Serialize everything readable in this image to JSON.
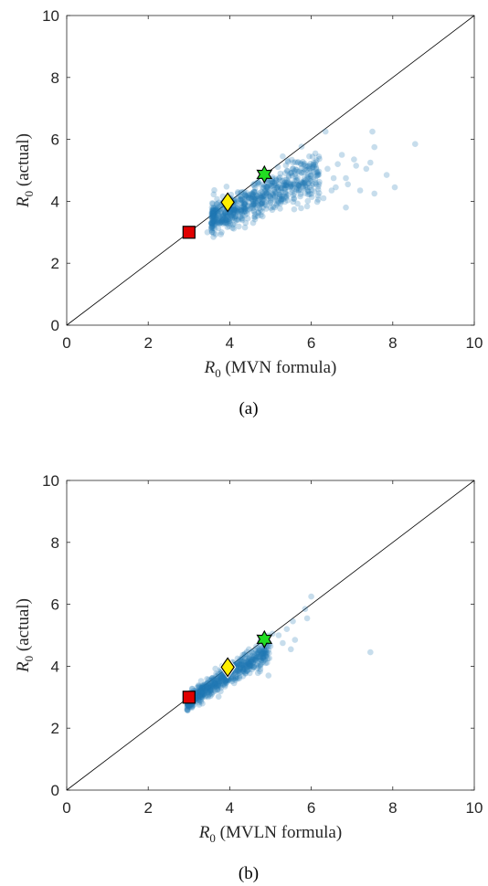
{
  "chart_data": [
    {
      "type": "scatter",
      "caption": "(a)",
      "xlabel": {
        "symbol": "R",
        "sub": "0",
        "rest": " (MVN formula)"
      },
      "ylabel": {
        "symbol": "R",
        "sub": "0",
        "rest": " (actual)"
      },
      "xlim": [
        0,
        10
      ],
      "ylim": [
        0,
        10
      ],
      "xticks": [
        0,
        2,
        4,
        6,
        8,
        10
      ],
      "yticks": [
        0,
        2,
        4,
        6,
        8,
        10
      ],
      "grid": false,
      "reference_line": {
        "x": [
          0,
          10
        ],
        "y": [
          0,
          10
        ]
      },
      "cloud": {
        "color": "#1f77b4",
        "opacity": 0.25,
        "x_range": [
          3.55,
          6.2
        ],
        "slope": 0.55,
        "spread": 0.3,
        "count": 700,
        "seed": 11
      },
      "extra_points": [
        [
          6.35,
          6.25
        ],
        [
          6.1,
          5.55
        ],
        [
          6.75,
          5.5
        ],
        [
          7.05,
          5.35
        ],
        [
          7.45,
          5.25
        ],
        [
          7.5,
          6.25
        ],
        [
          7.55,
          5.75
        ],
        [
          7.35,
          5.05
        ],
        [
          7.1,
          5.15
        ],
        [
          6.85,
          4.75
        ],
        [
          6.65,
          5.2
        ],
        [
          6.9,
          4.55
        ],
        [
          7.2,
          4.35
        ],
        [
          7.55,
          4.25
        ],
        [
          8.05,
          4.45
        ],
        [
          7.85,
          4.85
        ],
        [
          8.55,
          5.85
        ],
        [
          6.5,
          4.35
        ],
        [
          6.3,
          4.1
        ],
        [
          6.55,
          4.75
        ],
        [
          5.95,
          5.45
        ],
        [
          5.75,
          5.2
        ],
        [
          6.15,
          4.95
        ],
        [
          6.4,
          5.05
        ],
        [
          6.85,
          3.8
        ],
        [
          6.0,
          4.85
        ],
        [
          5.85,
          4.6
        ],
        [
          6.6,
          4.45
        ],
        [
          5.55,
          5.05
        ],
        [
          5.3,
          5.45
        ],
        [
          3.6,
          2.85
        ],
        [
          3.45,
          3.0
        ],
        [
          3.55,
          3.15
        ],
        [
          3.8,
          3.0
        ]
      ],
      "markers": [
        {
          "shape": "square",
          "x": 3.0,
          "y": 3.0,
          "color": "#e00000"
        },
        {
          "shape": "diamond",
          "x": 3.95,
          "y": 3.97,
          "color": "#ffee00"
        },
        {
          "shape": "star",
          "x": 4.85,
          "y": 4.87,
          "color": "#22dd22"
        }
      ]
    },
    {
      "type": "scatter",
      "caption": "(b)",
      "xlabel": {
        "symbol": "R",
        "sub": "0",
        "rest": " (MVLN formula)"
      },
      "ylabel": {
        "symbol": "R",
        "sub": "0",
        "rest": " (actual)"
      },
      "xlim": [
        0,
        10
      ],
      "ylim": [
        0,
        10
      ],
      "xticks": [
        0,
        2,
        4,
        6,
        8,
        10
      ],
      "yticks": [
        0,
        2,
        4,
        6,
        8,
        10
      ],
      "grid": false,
      "reference_line": {
        "x": [
          0,
          10
        ],
        "y": [
          0,
          10
        ]
      },
      "cloud": {
        "color": "#1f77b4",
        "opacity": 0.25,
        "x_range": [
          2.95,
          5.0
        ],
        "slope": 0.85,
        "spread": 0.16,
        "count": 650,
        "seed": 29
      },
      "extra_points": [
        [
          5.0,
          4.65
        ],
        [
          5.2,
          5.0
        ],
        [
          5.4,
          5.2
        ],
        [
          5.5,
          4.55
        ],
        [
          5.6,
          4.85
        ],
        [
          5.85,
          5.85
        ],
        [
          6.0,
          6.25
        ],
        [
          5.9,
          5.55
        ],
        [
          5.55,
          5.45
        ],
        [
          5.05,
          5.05
        ],
        [
          4.75,
          4.05
        ],
        [
          4.55,
          3.9
        ],
        [
          4.95,
          3.7
        ],
        [
          5.3,
          4.75
        ],
        [
          7.45,
          4.45
        ],
        [
          3.0,
          3.1
        ],
        [
          3.1,
          2.95
        ]
      ],
      "markers": [
        {
          "shape": "square",
          "x": 3.0,
          "y": 3.0,
          "color": "#e00000"
        },
        {
          "shape": "diamond",
          "x": 3.95,
          "y": 3.97,
          "color": "#ffee00"
        },
        {
          "shape": "star",
          "x": 4.85,
          "y": 4.87,
          "color": "#22dd22"
        }
      ]
    }
  ]
}
